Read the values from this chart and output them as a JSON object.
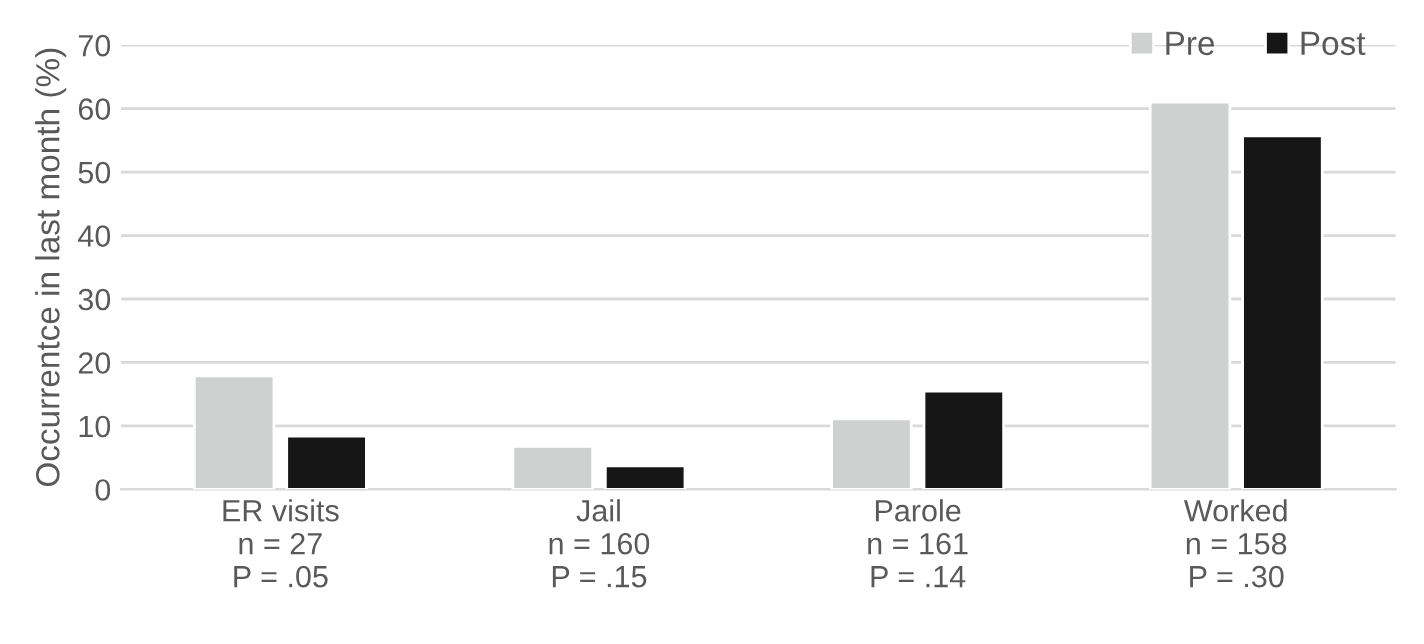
{
  "chart_data": {
    "type": "bar",
    "ylabel": "Occurrentce in last month (%)",
    "categories": [
      "ER visits\nn = 27\nP = .05",
      "Jail\nn = 160\nP = .15",
      "Parole\nn = 161\nP = .14",
      "Worked\nn = 158\nP = .30"
    ],
    "series": [
      {
        "name": "Pre",
        "color": "#cfd0d0",
        "values": [
          17.9,
          6.8,
          11.1,
          61.0
        ]
      },
      {
        "name": "Post",
        "color": "#161616",
        "values": [
          8.4,
          3.7,
          15.5,
          55.7
        ]
      }
    ],
    "ylim": [
      0,
      70
    ],
    "yticks": [
      0,
      10,
      20,
      30,
      40,
      50,
      60,
      70
    ],
    "grid": "y",
    "legend": "top right"
  }
}
